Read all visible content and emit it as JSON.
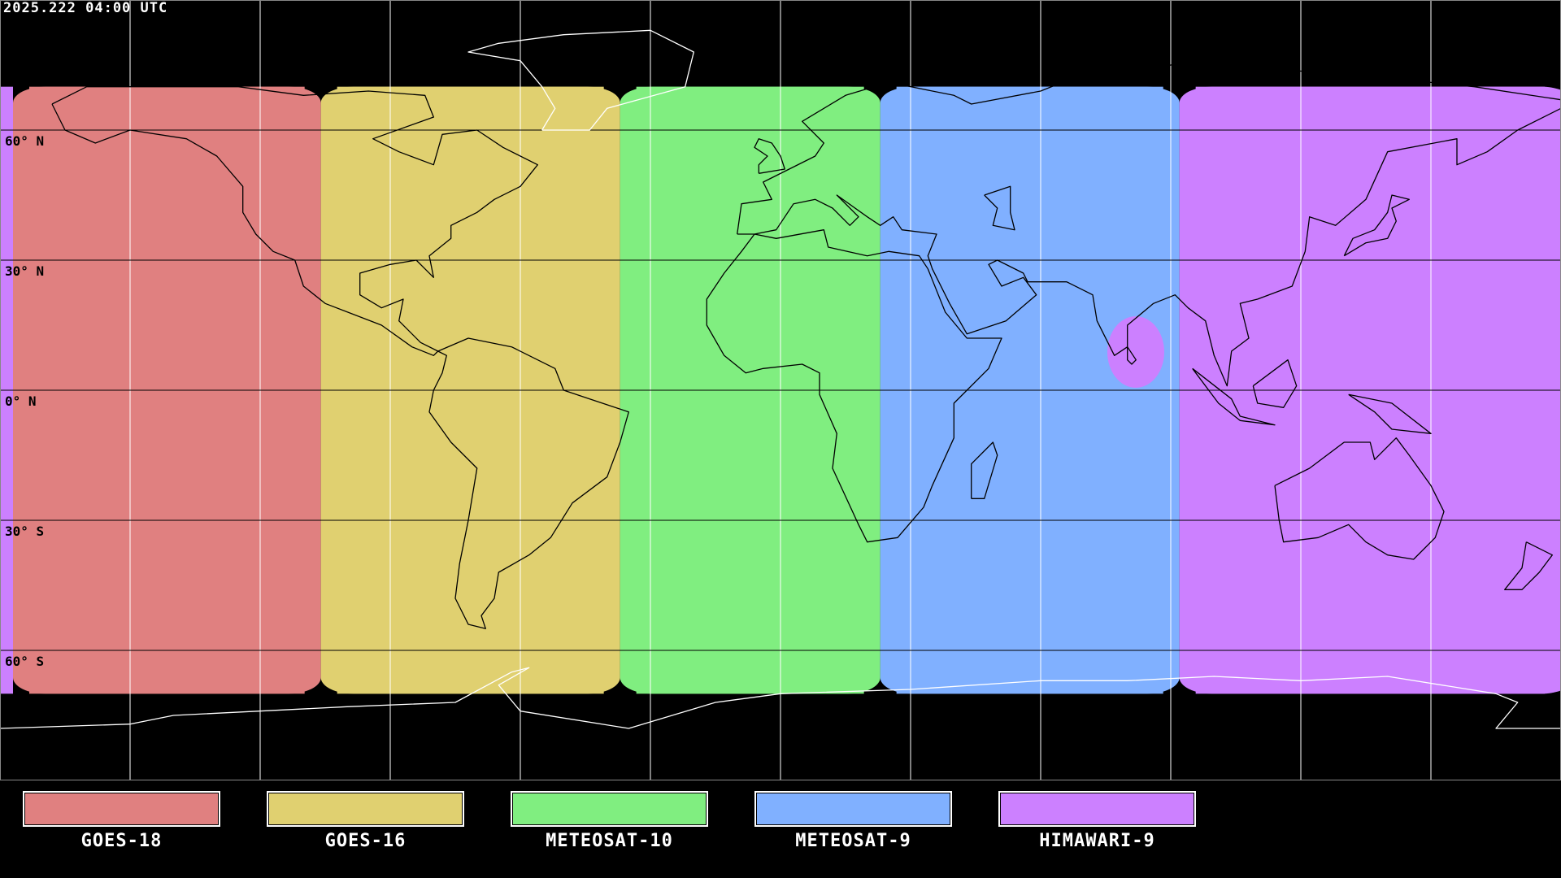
{
  "timestamp": "2025.222 04:00 UTC",
  "lat_labels": [
    "60° N",
    "30° N",
    "0° N",
    "30° S",
    "60° S"
  ],
  "grid": {
    "lon_step_deg": 30,
    "lat_step_deg": 30,
    "projection": "equirectangular"
  },
  "coverage_lat_limit_deg": 70,
  "satellites": [
    {
      "name": "GOES-18",
      "color": "#e08080",
      "lon_range": [
        -177,
        -106
      ]
    },
    {
      "name": "GOES-16",
      "color": "#e0d070",
      "lon_range": [
        -106,
        -37
      ]
    },
    {
      "name": "METEOSAT-10",
      "color": "#80ee80",
      "lon_range": [
        -37,
        23
      ]
    },
    {
      "name": "METEOSAT-9",
      "color": "#80b0ff",
      "lon_range": [
        23,
        92
      ]
    },
    {
      "name": "HIMAWARI-9",
      "color": "#cc80ff",
      "lon_range": [
        92,
        183
      ]
    }
  ]
}
